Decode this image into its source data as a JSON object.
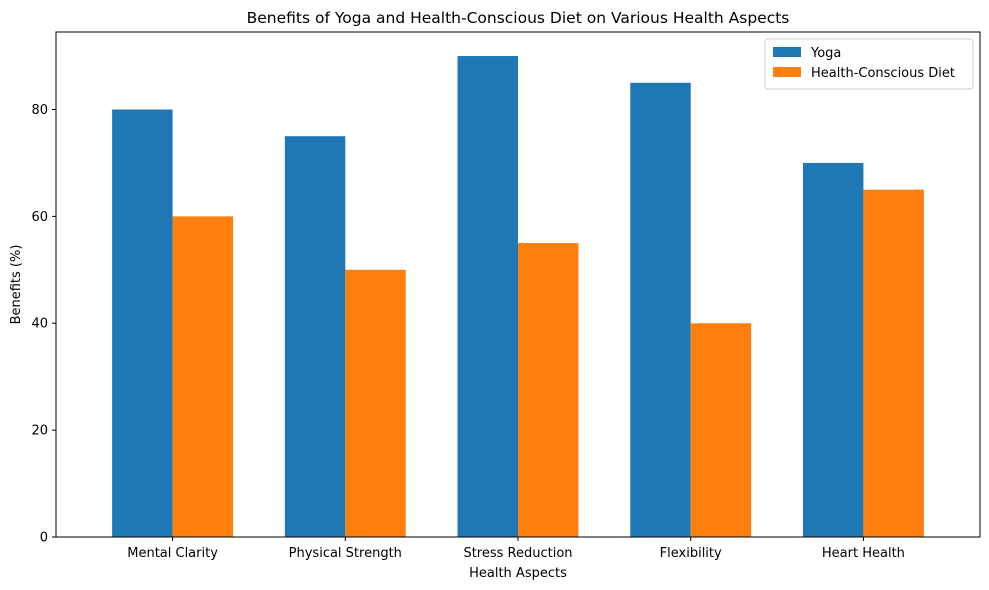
{
  "chart_data": {
    "type": "bar",
    "title": "Benefits of Yoga and Health-Conscious Diet on Various Health Aspects",
    "xlabel": "Health Aspects",
    "ylabel": "Benefits (%)",
    "categories": [
      "Mental Clarity",
      "Physical Strength",
      "Stress Reduction",
      "Flexibility",
      "Heart Health"
    ],
    "series": [
      {
        "name": "Yoga",
        "color": "#1f77b4",
        "values": [
          80,
          75,
          90,
          85,
          70
        ]
      },
      {
        "name": "Health-Conscious Diet",
        "color": "#ff7f0e",
        "values": [
          60,
          50,
          55,
          40,
          65
        ]
      }
    ],
    "ylim": [
      0,
      94.5
    ],
    "yticks": [
      0,
      20,
      40,
      60,
      80
    ],
    "grid": false,
    "legend_position": "top-right"
  }
}
